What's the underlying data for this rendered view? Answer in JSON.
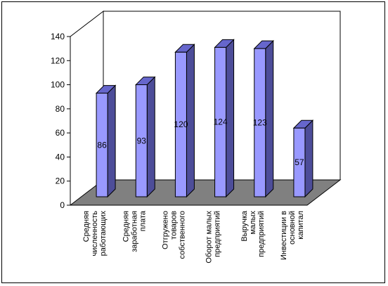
{
  "chart_data": {
    "type": "bar",
    "categories": [
      [
        "Средняя",
        "численность",
        "работающих"
      ],
      [
        "Средняя",
        "заработная",
        "плата"
      ],
      [
        "Отгружено",
        "товаров",
        "собственного"
      ],
      [
        "Оборот малых",
        "предприятий"
      ],
      [
        "Выручка",
        "малых",
        "предприятий"
      ],
      [
        "Инвестиции в",
        "основной",
        "капитал"
      ]
    ],
    "values": [
      86,
      93,
      120,
      124,
      123,
      57
    ],
    "ylim": [
      0,
      140
    ],
    "yticks": [
      0,
      20,
      40,
      60,
      80,
      100,
      120,
      140
    ],
    "grid": false,
    "legend": "none",
    "colors": {
      "bar_front": "#9999ff",
      "bar_side": "#4d4d99",
      "bar_top": "#6666cc",
      "floor": "#808080",
      "outline": "#000000"
    }
  }
}
